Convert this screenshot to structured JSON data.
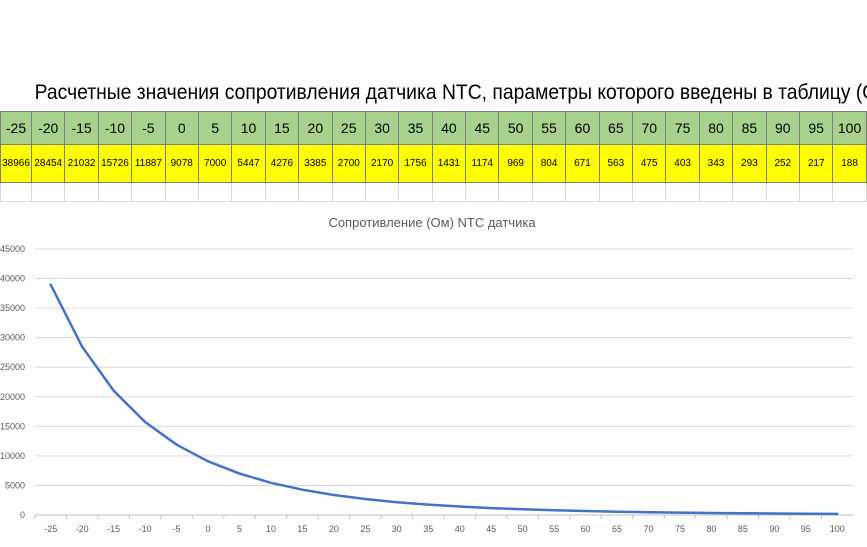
{
  "sheet": {
    "title": "Расчетные значения сопротивления датчика NTC, параметры которого введены в таблицу (Ом)",
    "temp_row_color": "#a9d18e",
    "res_row_color": "#ffff00",
    "temperatures": [
      "-25",
      "-20",
      "-15",
      "-10",
      "-5",
      "0",
      "5",
      "10",
      "15",
      "20",
      "25",
      "30",
      "35",
      "40",
      "45",
      "50",
      "55",
      "60",
      "65",
      "70",
      "75",
      "80",
      "85",
      "90",
      "95",
      "100"
    ],
    "resistances": [
      "38966",
      "28454",
      "21032",
      "15726",
      "11887",
      "9078",
      "7000",
      "5447",
      "4276",
      "3385",
      "2700",
      "2170",
      "1756",
      "1431",
      "1174",
      "969",
      "804",
      "671",
      "563",
      "475",
      "403",
      "343",
      "293",
      "252",
      "217",
      "188"
    ]
  },
  "chart_data": {
    "type": "line",
    "title": "Сопротивление (Ом) NTC датчика",
    "xlabel": "",
    "ylabel": "",
    "categories": [
      "-25",
      "-20",
      "-15",
      "-10",
      "-5",
      "0",
      "5",
      "10",
      "15",
      "20",
      "25",
      "30",
      "35",
      "40",
      "45",
      "50",
      "55",
      "60",
      "65",
      "70",
      "75",
      "80",
      "85",
      "90",
      "95",
      "100"
    ],
    "series": [
      {
        "values": [
          38966,
          28454,
          21032,
          15726,
          11887,
          9078,
          7000,
          5447,
          4276,
          3385,
          2700,
          2170,
          1756,
          1431,
          1174,
          969,
          804,
          671,
          563,
          475,
          403,
          343,
          293,
          252,
          217,
          188
        ],
        "color": "#4472c4"
      }
    ],
    "ylim": [
      0,
      45000
    ],
    "yticks": [
      "0",
      "5000",
      "10000",
      "15000",
      "20000",
      "25000",
      "30000",
      "35000",
      "40000",
      "45000"
    ],
    "grid": true,
    "legend": "none"
  }
}
